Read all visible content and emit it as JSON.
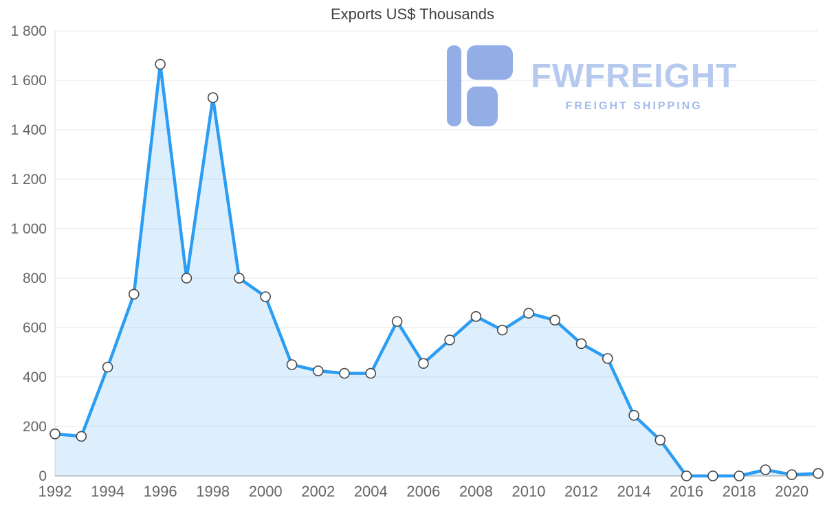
{
  "watermark": {
    "brand": "FWFREIGHT",
    "subtitle": "FREIGHT SHIPPING"
  },
  "colors": {
    "line": "#2b9df3",
    "area_fill": "rgba(43,157,243,0.16)",
    "marker_fill": "#ffffff",
    "marker_stroke": "#474747",
    "grid": "#e7e7e7",
    "axis_left": "#dddddd",
    "axis_bottom": "#9e9e9e",
    "tick_text": "#666666",
    "title_text": "#404040",
    "watermark_icon": "#8ea9e5",
    "watermark_text": "#b3c7ee",
    "watermark_subtitle": "#9fb9ea"
  },
  "chart_data": {
    "type": "area",
    "title": "Exports US$ Thousands",
    "xlabel": "",
    "ylabel": "",
    "xlim": [
      1992,
      2021
    ],
    "ylim": [
      0,
      1800
    ],
    "grid": "horizontal",
    "legend": "none",
    "x": [
      1992,
      1993,
      1994,
      1995,
      1996,
      1997,
      1998,
      1999,
      2000,
      2001,
      2002,
      2003,
      2004,
      2005,
      2006,
      2007,
      2008,
      2009,
      2010,
      2011,
      2012,
      2013,
      2014,
      2015,
      2016,
      2017,
      2018,
      2019,
      2020,
      2021
    ],
    "values": [
      170,
      160,
      440,
      735,
      1665,
      800,
      1530,
      800,
      725,
      450,
      425,
      415,
      415,
      625,
      455,
      550,
      645,
      590,
      658,
      630,
      535,
      475,
      245,
      145,
      0,
      0,
      0,
      25,
      5,
      10
    ],
    "x_ticks": [
      1992,
      1994,
      1996,
      1998,
      2000,
      2002,
      2004,
      2006,
      2008,
      2010,
      2012,
      2014,
      2016,
      2018,
      2020
    ],
    "y_ticks": [
      {
        "value": 0,
        "label": "0"
      },
      {
        "value": 200,
        "label": "200"
      },
      {
        "value": 400,
        "label": "400"
      },
      {
        "value": 600,
        "label": "600"
      },
      {
        "value": 800,
        "label": "800"
      },
      {
        "value": 1000,
        "label": "1 000"
      },
      {
        "value": 1200,
        "label": "1 200"
      },
      {
        "value": 1400,
        "label": "1 400"
      },
      {
        "value": 1600,
        "label": "1 600"
      },
      {
        "value": 1800,
        "label": "1 800"
      }
    ]
  }
}
